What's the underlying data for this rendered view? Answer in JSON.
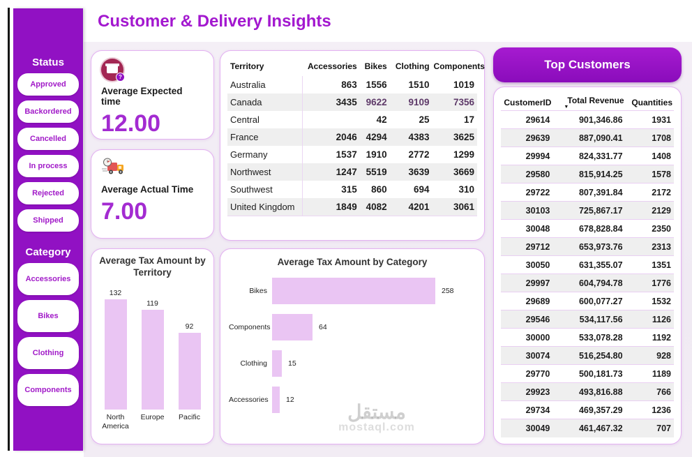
{
  "header": {
    "title": "Customer & Delivery Insights"
  },
  "sidebar": {
    "status": {
      "label": "Status",
      "items": [
        "Approved",
        "Backordered",
        "Cancelled",
        "In process",
        "Rejected",
        "Shipped"
      ]
    },
    "category": {
      "label": "Category",
      "items": [
        "Accessories",
        "Bikes",
        "Clothing",
        "Components"
      ]
    }
  },
  "kpis": [
    {
      "icon": "package-question-icon",
      "label": "Average Expected time",
      "value": "12.00"
    },
    {
      "icon": "delivery-truck-icon",
      "label": "Average Actual Time",
      "value": "7.00"
    }
  ],
  "matrix": {
    "columns": [
      "Territory",
      "Accessories",
      "Bikes",
      "Clothing",
      "Components"
    ],
    "rows": [
      {
        "territory": "Australia",
        "values": [
          "863",
          "1556",
          "1510",
          "1019"
        ]
      },
      {
        "territory": "Canada",
        "values": [
          "3435",
          "9622",
          "9109",
          "7356"
        ],
        "highlight": [
          false,
          true,
          true,
          true
        ]
      },
      {
        "territory": "Central",
        "values": [
          "",
          "42",
          "25",
          "17"
        ]
      },
      {
        "territory": "France",
        "values": [
          "2046",
          "4294",
          "4383",
          "3625"
        ]
      },
      {
        "territory": "Germany",
        "values": [
          "1537",
          "1910",
          "2772",
          "1299"
        ]
      },
      {
        "territory": "Northwest",
        "values": [
          "1247",
          "5519",
          "3639",
          "3669"
        ]
      },
      {
        "territory": "Southwest",
        "values": [
          "315",
          "860",
          "694",
          "310"
        ]
      },
      {
        "territory": "United Kingdom",
        "values": [
          "1849",
          "4082",
          "4201",
          "3061"
        ]
      }
    ]
  },
  "chart_data": [
    {
      "type": "bar",
      "orientation": "vertical",
      "title": "Average Tax Amount by Territory",
      "categories": [
        "North America",
        "Europe",
        "Pacific"
      ],
      "values": [
        132,
        119,
        92
      ],
      "ylim": [
        0,
        140
      ],
      "grid": false,
      "data_labels": true
    },
    {
      "type": "bar",
      "orientation": "horizontal",
      "title": "Average Tax Amount by Category",
      "categories": [
        "Bikes",
        "Components",
        "Clothing",
        "Accessories"
      ],
      "values": [
        258,
        64,
        15,
        12
      ],
      "xlim": [
        0,
        285
      ],
      "grid": false,
      "data_labels": true
    }
  ],
  "top_customers": {
    "title": "Top Customers",
    "columns": [
      "CustomerID",
      "Total Revenue",
      "Quantities"
    ],
    "sort_column": "Total Revenue",
    "sort_indicator": "▼",
    "rows": [
      [
        "29614",
        "901,346.86",
        "1931"
      ],
      [
        "29639",
        "887,090.41",
        "1708"
      ],
      [
        "29994",
        "824,331.77",
        "1408"
      ],
      [
        "29580",
        "815,914.25",
        "1578"
      ],
      [
        "29722",
        "807,391.84",
        "2172"
      ],
      [
        "30103",
        "725,867.17",
        "2129"
      ],
      [
        "30048",
        "678,828.84",
        "2350"
      ],
      [
        "29712",
        "653,973.76",
        "2313"
      ],
      [
        "30050",
        "631,355.07",
        "1351"
      ],
      [
        "29997",
        "604,794.78",
        "1776"
      ],
      [
        "29689",
        "600,077.27",
        "1532"
      ],
      [
        "29546",
        "534,117.56",
        "1126"
      ],
      [
        "30000",
        "533,078.28",
        "1192"
      ],
      [
        "30074",
        "516,254.80",
        "928"
      ],
      [
        "29770",
        "500,181.73",
        "1189"
      ],
      [
        "29923",
        "493,816.88",
        "766"
      ],
      [
        "29734",
        "469,357.29",
        "1236"
      ],
      [
        "30049",
        "461,467.32",
        "707"
      ]
    ]
  },
  "watermark": {
    "line1": "مستقل",
    "line2": "mostaql.com"
  },
  "colors": {
    "sidebar_purple": "#9111c3",
    "title_purple": "#a318cf",
    "kpi_value_purple": "#a32bd1",
    "bar_fill": "#eac5f3",
    "card_border": "#e3b1f1",
    "alt_row": "#efefef",
    "highlight_value": "#5e3a69",
    "content_bg": "#f1ecf4"
  }
}
